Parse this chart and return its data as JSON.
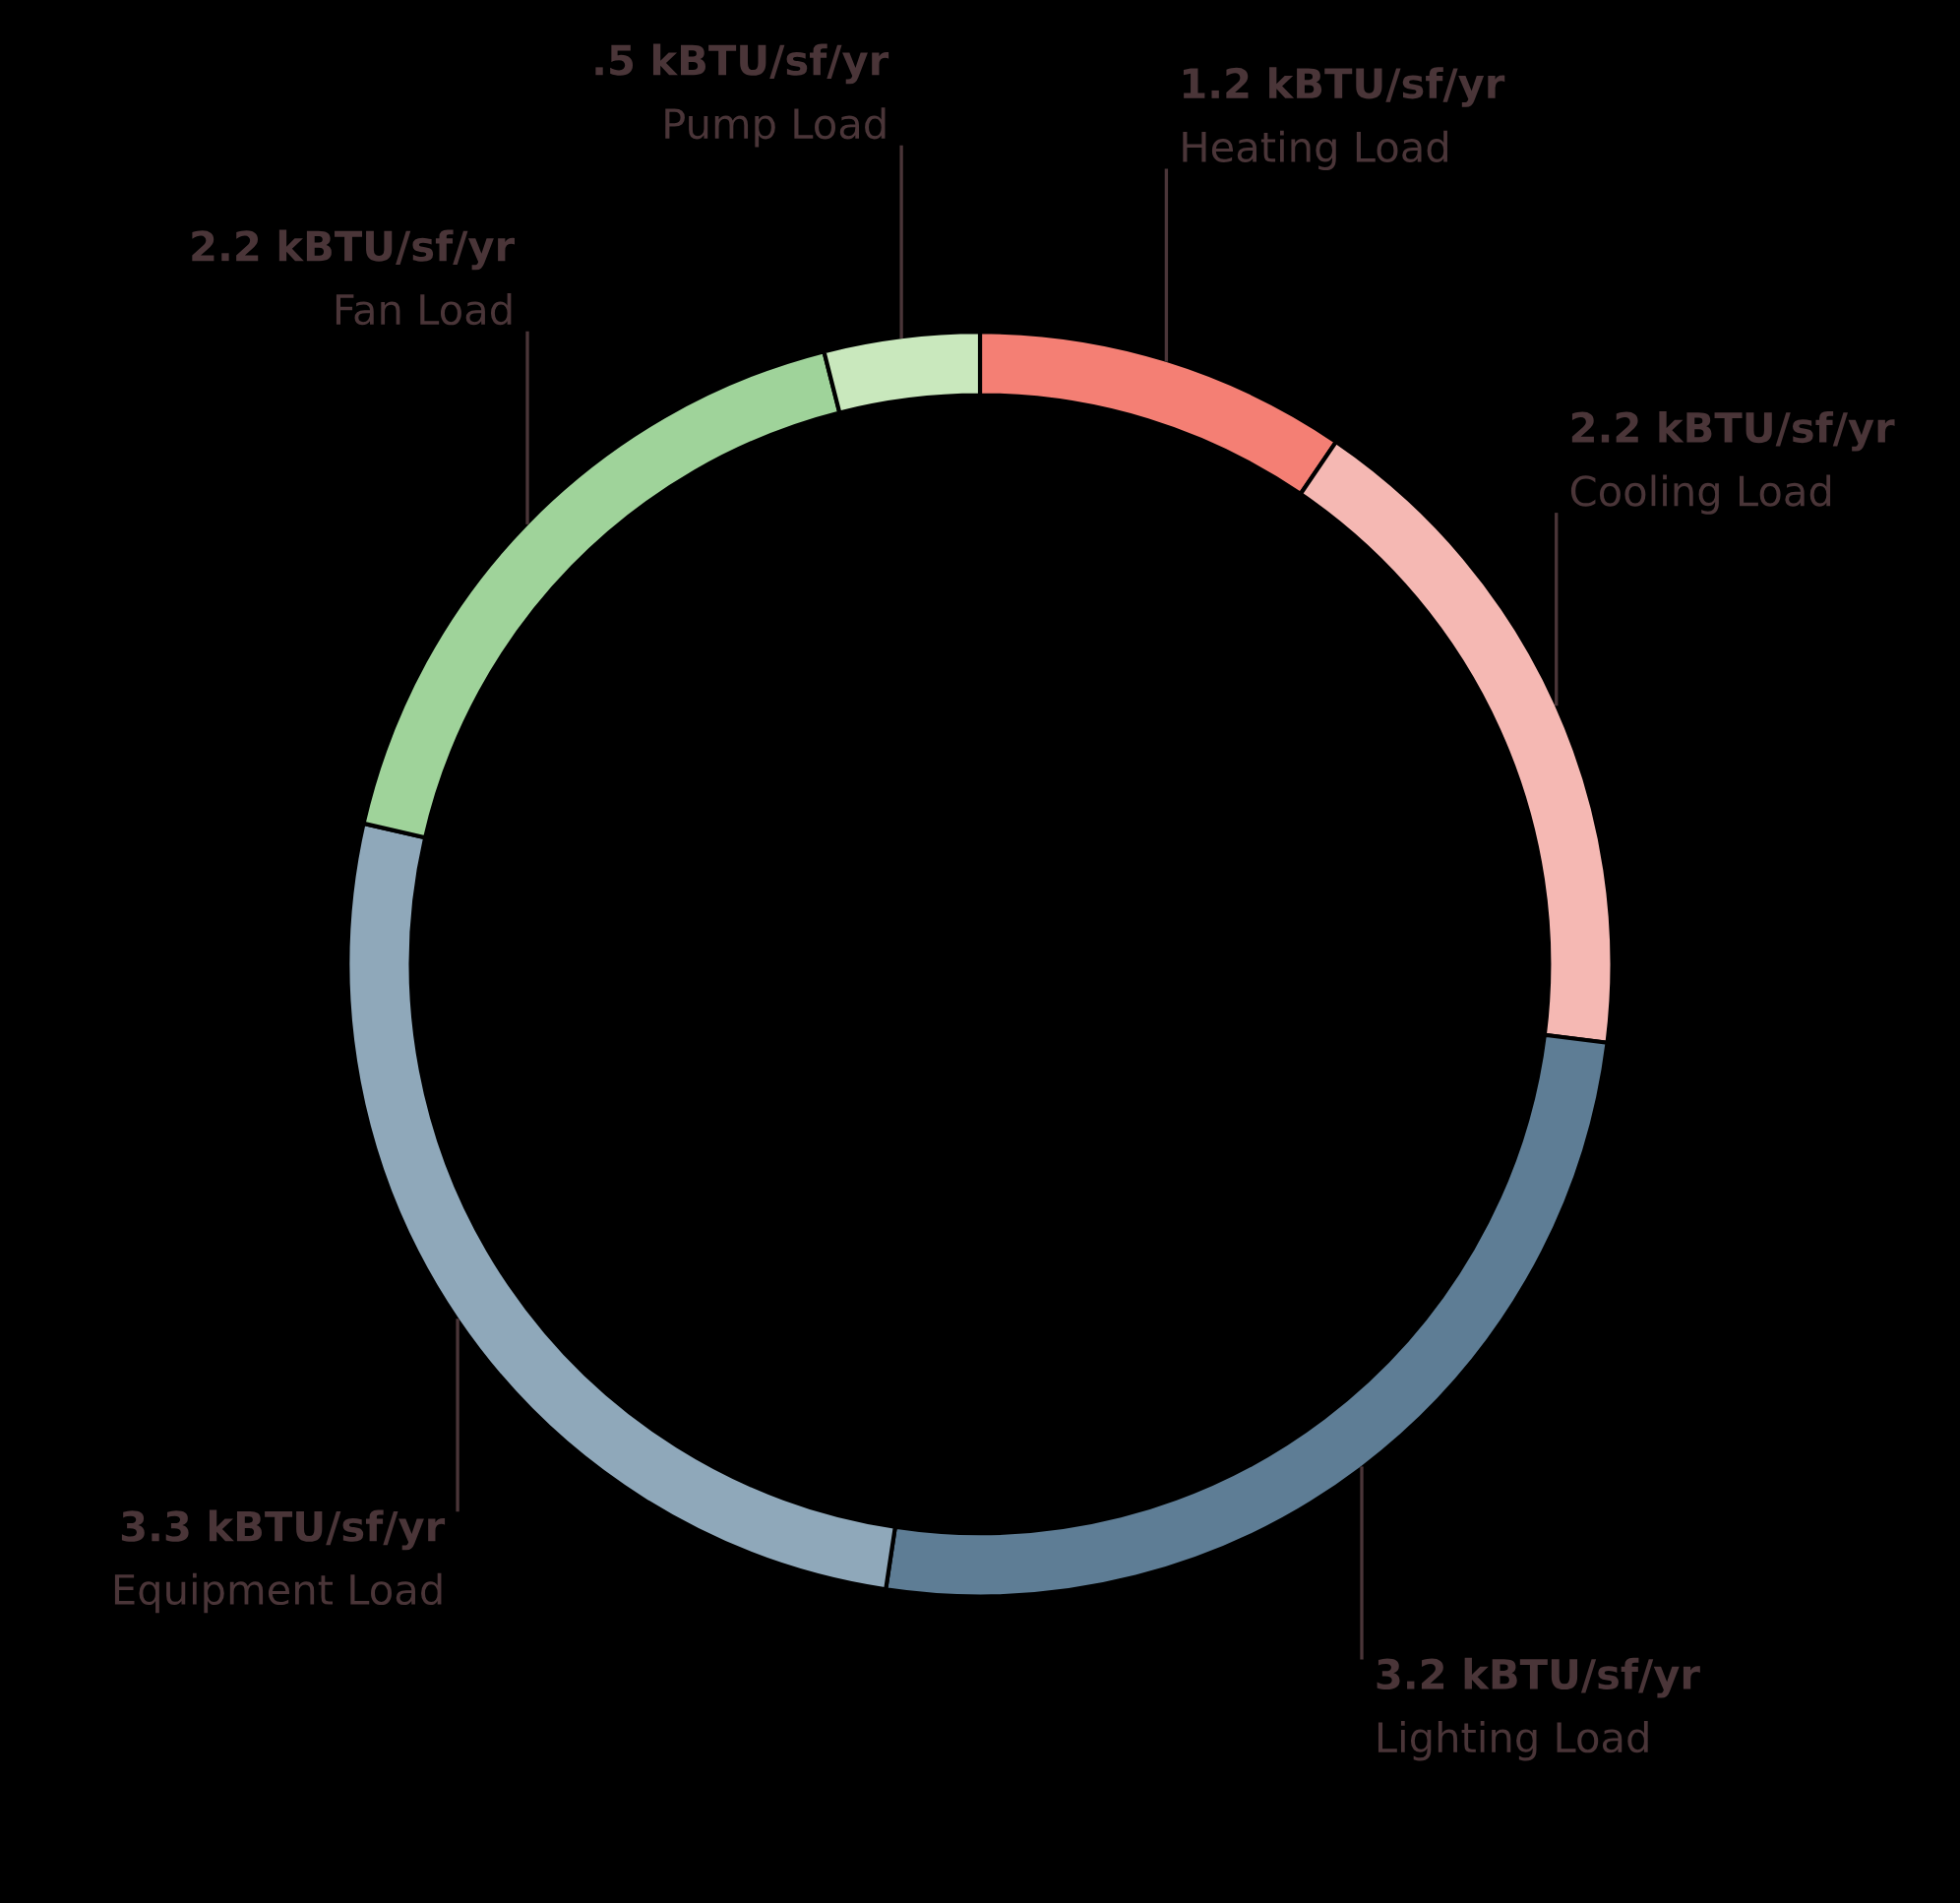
{
  "chart_data": {
    "type": "donut",
    "categories": [
      "Heating Load",
      "Cooling Load",
      "Lighting Load",
      "Equipment Load",
      "Fan Load",
      "Pump Load"
    ],
    "values": [
      1.2,
      2.2,
      3.2,
      3.3,
      2.2,
      0.5
    ],
    "value_labels": [
      "1.2 kBTU/sf/yr",
      "2.2 kBTU/sf/yr",
      "3.2 kBTU/sf/yr",
      "3.3 kBTU/sf/yr",
      "2.2 kBTU/sf/yr",
      ".5 kBTU/sf/yr"
    ],
    "colors": [
      "#f47f74",
      "#f5b8b3",
      "#5e7d95",
      "#8fa8ba",
      "#9fd39a",
      "#c9e8bd"
    ],
    "legend": false
  }
}
